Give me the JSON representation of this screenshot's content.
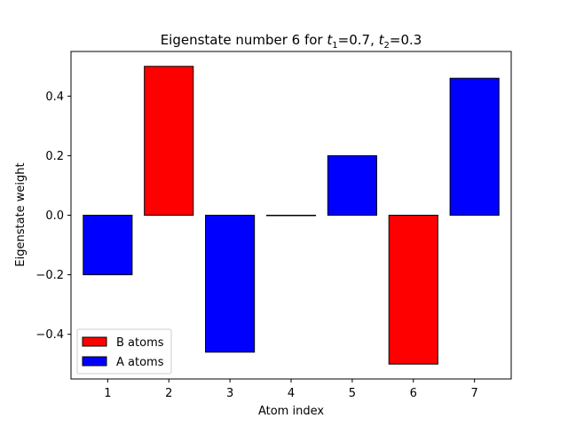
{
  "chart_data": {
    "type": "bar",
    "title_main": "Eigenstate number 6 for ",
    "title_t1_symbol": "t",
    "title_t1_sub": "1",
    "title_t1_value": "=0.7, ",
    "title_t2_symbol": "t",
    "title_t2_sub": "2",
    "title_t2_value": "=0.3",
    "xlabel": "Atom index",
    "ylabel": "Eigenstate weight",
    "categories": [
      "1",
      "2",
      "3",
      "4",
      "5",
      "6",
      "7"
    ],
    "x": [
      1,
      2,
      3,
      4,
      5,
      6,
      7
    ],
    "values": [
      -0.2,
      0.5,
      -0.46,
      0.0,
      0.2,
      -0.5,
      0.46
    ],
    "bar_groups": [
      "A",
      "B",
      "A",
      "A",
      "A",
      "B",
      "A"
    ],
    "ylim": [
      -0.55,
      0.55
    ],
    "xlim": [
      0.4,
      7.6
    ],
    "yticks": [
      -0.4,
      -0.2,
      0.0,
      0.2,
      0.4
    ],
    "ytick_labels": [
      "−0.4",
      "−0.2",
      "0.0",
      "0.2",
      "0.4"
    ],
    "grid": false,
    "legend_position": "lower-left",
    "legend": [
      {
        "label": "B atoms",
        "color": "#ff0000"
      },
      {
        "label": "A atoms",
        "color": "#0000ff"
      }
    ],
    "colors": {
      "A": "#0000ff",
      "B": "#ff0000",
      "edge": "#000000"
    }
  }
}
